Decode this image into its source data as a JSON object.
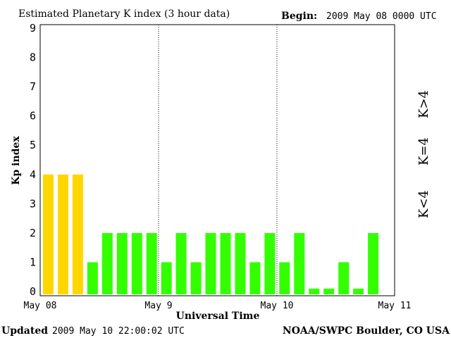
{
  "header": {
    "title": "Estimated Planetary K index (3 hour data)",
    "begin_label": "Begin:",
    "begin_value": "2009 May 08 0000 UTC"
  },
  "footer": {
    "updated_label": "Updated",
    "updated_value": "2009 May 10 22:00:02 UTC",
    "source": "NOAA/SWPC Boulder, CO USA"
  },
  "legend": {
    "k_gt4": "K>4",
    "k_eq4": "K=4",
    "k_lt4": "K<4"
  },
  "colors": {
    "k_lt4": "#33ff00",
    "k_eq4": "#ffd700",
    "k_gt4": "#ff2a00",
    "gridline": "#000000"
  },
  "chart_data": {
    "type": "bar",
    "title": "Estimated Planetary K index (3 hour data)",
    "xlabel": "Universal Time",
    "ylabel": "Kp index",
    "ylim": [
      0,
      9
    ],
    "yticks": [
      "0",
      "1",
      "2",
      "3",
      "4",
      "5",
      "6",
      "7",
      "8",
      "9"
    ],
    "xticks": [
      "May 08",
      "May 9",
      "May 10",
      "May 11"
    ],
    "interval_hours": 3,
    "day_dividers": "dotted",
    "values": [
      4,
      4,
      4,
      1,
      2,
      2,
      2,
      2,
      1,
      2,
      1,
      2,
      2,
      2,
      1,
      2,
      1,
      2,
      0.1,
      0.1,
      1,
      0.1,
      2
    ]
  }
}
